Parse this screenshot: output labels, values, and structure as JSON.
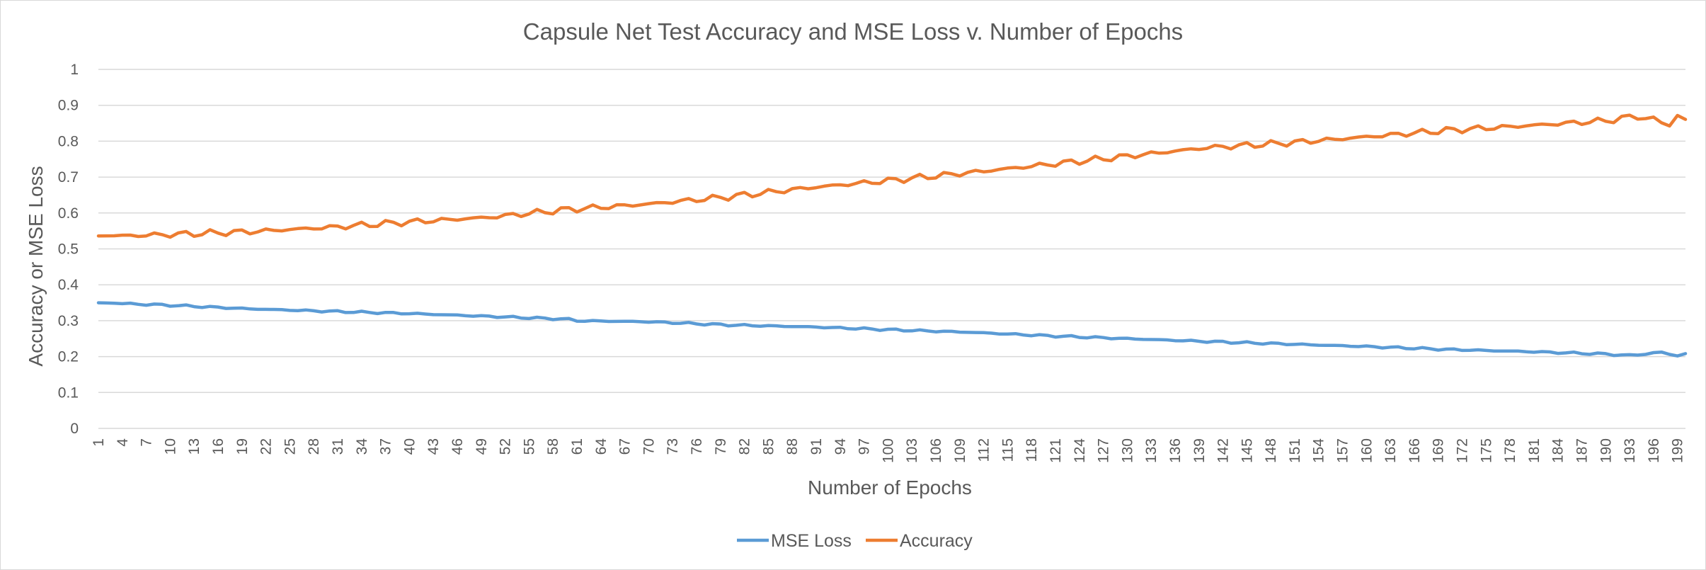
{
  "chart_data": {
    "type": "line",
    "title": "Capsule Net Test Accuracy and MSE Loss v. Number of Epochs",
    "xlabel": "Number of Epochs",
    "ylabel": "Accuracy or MSE Loss",
    "x_range": [
      1,
      200
    ],
    "x_tick_every": 3,
    "ylim": [
      0,
      1
    ],
    "y_ticks": [
      "0",
      "0.1",
      "0.2",
      "0.3",
      "0.4",
      "0.5",
      "0.6",
      "0.7",
      "0.8",
      "0.9",
      "1"
    ],
    "grid": "horizontal",
    "legend_position": "bottom",
    "series": [
      {
        "name": "MSE Loss",
        "color": "#5b9bd5",
        "anchors": [
          [
            1,
            0.35
          ],
          [
            10,
            0.343
          ],
          [
            20,
            0.333
          ],
          [
            30,
            0.326
          ],
          [
            40,
            0.32
          ],
          [
            50,
            0.312
          ],
          [
            60,
            0.304
          ],
          [
            61,
            0.3
          ],
          [
            70,
            0.297
          ],
          [
            80,
            0.288
          ],
          [
            90,
            0.283
          ],
          [
            100,
            0.275
          ],
          [
            110,
            0.268
          ],
          [
            120,
            0.258
          ],
          [
            130,
            0.25
          ],
          [
            140,
            0.242
          ],
          [
            150,
            0.235
          ],
          [
            160,
            0.228
          ],
          [
            170,
            0.22
          ],
          [
            180,
            0.214
          ],
          [
            190,
            0.207
          ],
          [
            193,
            0.203
          ],
          [
            197,
            0.212
          ],
          [
            199,
            0.202
          ],
          [
            200,
            0.208
          ]
        ]
      },
      {
        "name": "Accuracy",
        "color": "#ed7d31",
        "anchors": [
          [
            1,
            0.536
          ],
          [
            5,
            0.537
          ],
          [
            10,
            0.54
          ],
          [
            20,
            0.548
          ],
          [
            30,
            0.56
          ],
          [
            40,
            0.575
          ],
          [
            50,
            0.588
          ],
          [
            60,
            0.61
          ],
          [
            70,
            0.625
          ],
          [
            80,
            0.645
          ],
          [
            90,
            0.67
          ],
          [
            100,
            0.69
          ],
          [
            110,
            0.712
          ],
          [
            120,
            0.735
          ],
          [
            130,
            0.758
          ],
          [
            140,
            0.782
          ],
          [
            150,
            0.795
          ],
          [
            160,
            0.812
          ],
          [
            170,
            0.83
          ],
          [
            180,
            0.843
          ],
          [
            190,
            0.857
          ],
          [
            194,
            0.87
          ],
          [
            198,
            0.848
          ],
          [
            199,
            0.868
          ],
          [
            200,
            0.858
          ]
        ]
      }
    ]
  }
}
